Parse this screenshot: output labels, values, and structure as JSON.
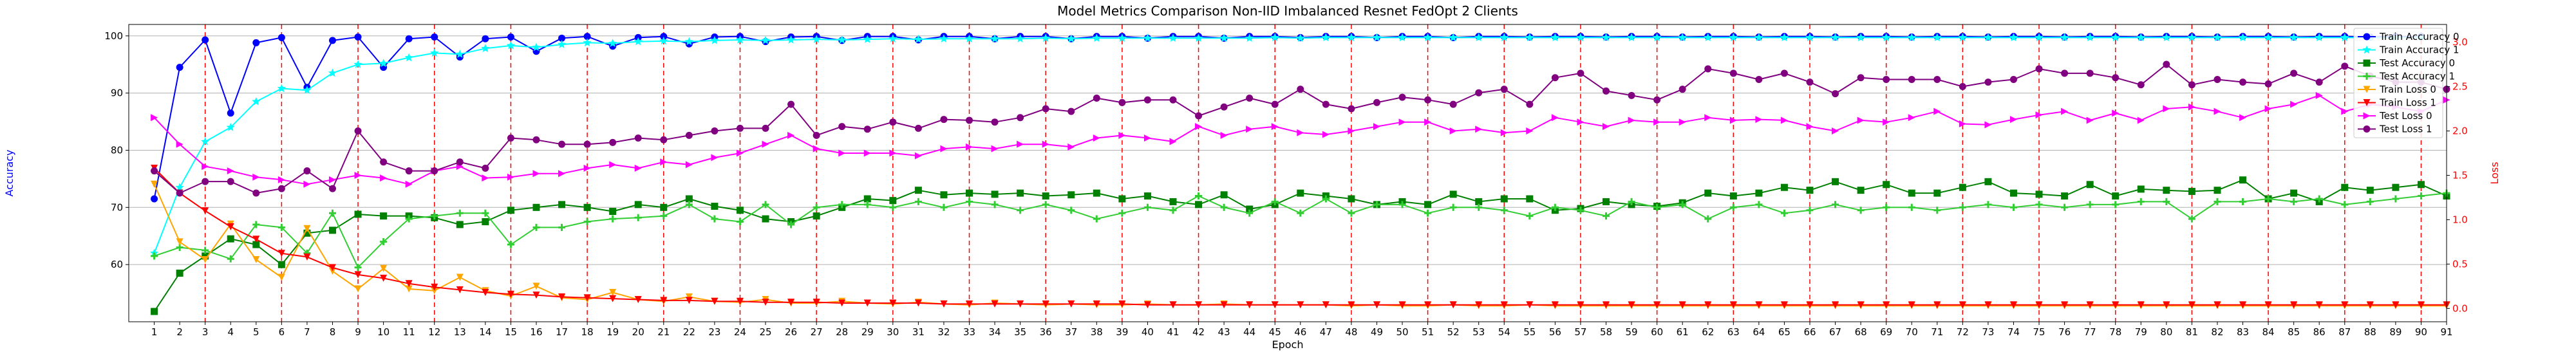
{
  "chart_data": {
    "type": "line",
    "title": "Model Metrics Comparison Non-IID Imbalanced Resnet FedOpt 2 Clients",
    "xlabel": "Epoch",
    "ylabel_left": "Accuracy",
    "ylabel_right": "Loss",
    "xlim": [
      0,
      91
    ],
    "ylim_left": [
      50,
      102
    ],
    "ylim_right": [
      -0.15,
      3.2
    ],
    "x_ticks": [
      1,
      2,
      3,
      4,
      5,
      6,
      7,
      8,
      9,
      10,
      11,
      12,
      13,
      14,
      15,
      16,
      17,
      18,
      19,
      20,
      21,
      22,
      23,
      24,
      25,
      26,
      27,
      28,
      29,
      30,
      31,
      32,
      33,
      34,
      35,
      36,
      37,
      38,
      39,
      40,
      41,
      42,
      43,
      44,
      45,
      46,
      47,
      48,
      49,
      50,
      51,
      52,
      53,
      54,
      55,
      56,
      57,
      58,
      59,
      60,
      61,
      62,
      63,
      64,
      65,
      66,
      67,
      68,
      69,
      70,
      71,
      72,
      73,
      74,
      75,
      76,
      77,
      78,
      79,
      80,
      81,
      82,
      83,
      84,
      85,
      86,
      87,
      88,
      89,
      90,
      91
    ],
    "y_ticks_left": [
      60,
      70,
      80,
      90,
      100
    ],
    "y_ticks_right": [
      "0.0",
      "0.5",
      "1.0",
      "1.5",
      "2.0",
      "2.5",
      "3.0"
    ],
    "y_ticks_right_values": [
      0,
      0.5,
      1,
      1.5,
      2,
      2.5,
      3
    ],
    "vlines": [
      3,
      6,
      9,
      12,
      15,
      18,
      21,
      24,
      27,
      30,
      33,
      36,
      39,
      42,
      45,
      48,
      51,
      54,
      57,
      60,
      63,
      66,
      69,
      72,
      75,
      78,
      81,
      84,
      87,
      90
    ],
    "grid": true,
    "legend_position": "top-right",
    "series": [
      {
        "name": "Train Accuracy 0",
        "axis": "left",
        "color": "#0000ff",
        "marker": "circle",
        "values": [
          71.5,
          94.5,
          99.3,
          86.5,
          98.8,
          99.7,
          91.0,
          99.2,
          99.8,
          94.5,
          99.5,
          99.8,
          96.3,
          99.5,
          99.8,
          97.3,
          99.6,
          99.9,
          98.2,
          99.7,
          99.9,
          98.6,
          99.8,
          99.9,
          99.0,
          99.8,
          99.9,
          99.2,
          99.9,
          99.9,
          99.3,
          99.9,
          99.9,
          99.5,
          99.9,
          99.9,
          99.5,
          99.9,
          99.9,
          99.6,
          99.9,
          99.9,
          99.6,
          99.9,
          99.9,
          99.7,
          99.9,
          99.9,
          99.7,
          99.9,
          99.9,
          99.7,
          99.9,
          99.9,
          99.8,
          99.9,
          99.9,
          99.8,
          99.9,
          99.9,
          99.8,
          99.9,
          99.9,
          99.8,
          99.9,
          99.9,
          99.8,
          99.9,
          99.9,
          99.8,
          99.9,
          99.9,
          99.8,
          99.9,
          99.9,
          99.8,
          99.9,
          99.9,
          99.8,
          99.9,
          99.9,
          99.8,
          99.9,
          99.9,
          99.8,
          99.9,
          99.9,
          99.8,
          99.9,
          99.9
        ]
      },
      {
        "name": "Train Accuracy 1",
        "axis": "left",
        "color": "#00ffff",
        "marker": "star",
        "values": [
          62.0,
          73.5,
          81.5,
          84.0,
          88.5,
          90.8,
          90.5,
          93.5,
          95.0,
          95.2,
          96.2,
          97.0,
          96.8,
          97.8,
          98.3,
          98.0,
          98.5,
          98.8,
          98.7,
          99.0,
          99.1,
          99.0,
          99.2,
          99.3,
          99.2,
          99.3,
          99.4,
          99.3,
          99.4,
          99.5,
          99.4,
          99.5,
          99.5,
          99.5,
          99.5,
          99.6,
          99.5,
          99.6,
          99.6,
          99.6,
          99.6,
          99.6,
          99.6,
          99.6,
          99.7,
          99.6,
          99.7,
          99.7,
          99.7,
          99.7,
          99.7,
          99.7,
          99.7,
          99.7,
          99.7,
          99.7,
          99.7,
          99.7,
          99.7,
          99.7,
          99.7,
          99.7,
          99.7,
          99.7,
          99.7,
          99.7,
          99.7,
          99.7,
          99.7,
          99.7,
          99.7,
          99.7,
          99.7,
          99.7,
          99.7,
          99.7,
          99.7,
          99.7,
          99.7,
          99.7,
          99.7,
          99.7,
          99.7,
          99.7,
          99.7,
          99.7,
          99.7,
          99.7,
          99.7,
          99.7
        ]
      },
      {
        "name": "Test Accuracy 0",
        "axis": "left",
        "color": "#008000",
        "marker": "square",
        "values": [
          51.8,
          58.5,
          61.5,
          64.5,
          63.5,
          60.0,
          65.5,
          66.0,
          68.8,
          68.5,
          68.5,
          68.2,
          67.0,
          67.5,
          69.5,
          70.0,
          70.5,
          70.0,
          69.3,
          70.5,
          70.0,
          71.5,
          70.2,
          69.5,
          68.0,
          67.5,
          68.5,
          70.0,
          71.5,
          71.2,
          73.0,
          72.2,
          72.5,
          72.3,
          72.5,
          72.0,
          72.2,
          72.5,
          71.5,
          72.0,
          71.0,
          70.5,
          72.2,
          69.7,
          70.5,
          72.5,
          72.0,
          71.5,
          70.5,
          71.0,
          70.5,
          72.3,
          71.0,
          71.5,
          71.5,
          69.5,
          69.8,
          71.0,
          70.5,
          70.2,
          70.8,
          72.5,
          72.0,
          72.5,
          73.5,
          73.0,
          74.5,
          73.0,
          74.0,
          72.5,
          72.5,
          73.5,
          74.5,
          72.5,
          72.3,
          72.0,
          74.0,
          72.0,
          73.2,
          73.0,
          72.8,
          73.0,
          74.8,
          71.5,
          72.5,
          71.0,
          73.5,
          73.0,
          73.5,
          74.0,
          72.0
        ]
      },
      {
        "name": "Test Accuracy 1",
        "axis": "left",
        "color": "#32cd32",
        "marker": "plus",
        "values": [
          61.5,
          63.0,
          62.5,
          61.0,
          67.0,
          66.5,
          62.0,
          69.0,
          59.5,
          64.0,
          68.0,
          68.5,
          69.0,
          69.0,
          63.5,
          66.5,
          66.5,
          67.5,
          68.0,
          68.2,
          68.5,
          70.5,
          68.0,
          67.5,
          70.5,
          67.0,
          70.0,
          70.5,
          70.5,
          70.0,
          71.0,
          70.0,
          71.0,
          70.5,
          69.5,
          70.5,
          69.5,
          68.0,
          69.0,
          70.0,
          69.5,
          72.0,
          70.0,
          69.0,
          71.0,
          69.0,
          71.5,
          69.0,
          70.5,
          70.5,
          69.0,
          70.0,
          70.0,
          69.5,
          68.5,
          70.0,
          69.5,
          68.5,
          71.0,
          70.0,
          70.5,
          68.0,
          70.0,
          70.5,
          69.0,
          69.5,
          70.5,
          69.5,
          70.0,
          70.0,
          69.5,
          70.0,
          70.5,
          70.0,
          70.5,
          70.0,
          70.5,
          70.5,
          71.0,
          71.0,
          68.0,
          71.0,
          71.0,
          71.5,
          71.0,
          71.5,
          70.5,
          71.0,
          71.5,
          72.0,
          72.5
        ]
      },
      {
        "name": "Train Loss 0",
        "axis": "right",
        "color": "#ffa500",
        "marker": "triangle-down",
        "values": [
          1.4,
          0.75,
          0.55,
          0.95,
          0.55,
          0.35,
          0.9,
          0.42,
          0.22,
          0.45,
          0.22,
          0.2,
          0.35,
          0.2,
          0.14,
          0.25,
          0.12,
          0.1,
          0.18,
          0.1,
          0.08,
          0.13,
          0.08,
          0.07,
          0.1,
          0.06,
          0.06,
          0.08,
          0.06,
          0.05,
          0.07,
          0.05,
          0.04,
          0.06,
          0.05,
          0.04,
          0.05,
          0.04,
          0.04,
          0.05,
          0.04,
          0.04,
          0.05,
          0.04,
          0.04,
          0.04,
          0.04,
          0.03,
          0.04,
          0.03,
          0.03,
          0.04,
          0.03,
          0.03,
          0.04,
          0.03,
          0.03,
          0.03,
          0.03,
          0.03,
          0.03,
          0.03,
          0.03,
          0.03,
          0.03,
          0.03,
          0.03,
          0.03,
          0.03,
          0.03,
          0.03,
          0.03,
          0.03,
          0.03,
          0.03,
          0.03,
          0.03,
          0.03,
          0.03,
          0.03,
          0.03,
          0.03,
          0.03,
          0.03,
          0.03,
          0.03,
          0.03,
          0.03,
          0.03,
          0.03,
          0.03
        ]
      },
      {
        "name": "Train Loss 1",
        "axis": "right",
        "color": "#ff0000",
        "marker": "triangle-down",
        "values": [
          1.58,
          1.3,
          1.1,
          0.92,
          0.78,
          0.62,
          0.58,
          0.46,
          0.38,
          0.34,
          0.28,
          0.24,
          0.21,
          0.18,
          0.16,
          0.15,
          0.13,
          0.12,
          0.11,
          0.1,
          0.09,
          0.09,
          0.08,
          0.08,
          0.07,
          0.07,
          0.07,
          0.06,
          0.06,
          0.06,
          0.06,
          0.05,
          0.05,
          0.05,
          0.05,
          0.05,
          0.05,
          0.05,
          0.05,
          0.04,
          0.04,
          0.04,
          0.04,
          0.04,
          0.04,
          0.04,
          0.04,
          0.04,
          0.04,
          0.04,
          0.04,
          0.04,
          0.04,
          0.04,
          0.04,
          0.04,
          0.04,
          0.04,
          0.04,
          0.04,
          0.04,
          0.04,
          0.04,
          0.04,
          0.04,
          0.04,
          0.04,
          0.04,
          0.04,
          0.04,
          0.04,
          0.04,
          0.04,
          0.04,
          0.04,
          0.04,
          0.04,
          0.04,
          0.04,
          0.04,
          0.04,
          0.04,
          0.04,
          0.04,
          0.04,
          0.04,
          0.04,
          0.04,
          0.04,
          0.04,
          0.04
        ]
      },
      {
        "name": "Test Loss 0",
        "axis": "right",
        "color": "#ff00ff",
        "marker": "triangle-right",
        "values": [
          2.15,
          1.85,
          1.6,
          1.55,
          1.48,
          1.45,
          1.4,
          1.45,
          1.5,
          1.47,
          1.4,
          1.55,
          1.6,
          1.47,
          1.48,
          1.52,
          1.52,
          1.58,
          1.62,
          1.58,
          1.65,
          1.62,
          1.7,
          1.75,
          1.85,
          1.95,
          1.8,
          1.75,
          1.75,
          1.75,
          1.72,
          1.8,
          1.82,
          1.8,
          1.85,
          1.85,
          1.82,
          1.92,
          1.95,
          1.92,
          1.88,
          2.05,
          1.95,
          2.02,
          2.05,
          1.98,
          1.96,
          2.0,
          2.05,
          2.1,
          2.1,
          2.0,
          2.02,
          1.98,
          2.0,
          2.15,
          2.1,
          2.05,
          2.12,
          2.1,
          2.1,
          2.15,
          2.12,
          2.13,
          2.12,
          2.05,
          2.0,
          2.12,
          2.1,
          2.15,
          2.22,
          2.08,
          2.07,
          2.13,
          2.18,
          2.22,
          2.12,
          2.2,
          2.12,
          2.25,
          2.27,
          2.22,
          2.15,
          2.25,
          2.3,
          2.4,
          2.22,
          2.3,
          2.27,
          2.22,
          2.35
        ]
      },
      {
        "name": "Test Loss 1",
        "axis": "right",
        "color": "#800080",
        "marker": "circle",
        "values": [
          1.55,
          1.3,
          1.43,
          1.43,
          1.3,
          1.35,
          1.55,
          1.35,
          2.0,
          1.65,
          1.55,
          1.55,
          1.65,
          1.58,
          1.92,
          1.9,
          1.85,
          1.85,
          1.87,
          1.92,
          1.9,
          1.95,
          2.0,
          2.03,
          2.03,
          2.3,
          1.95,
          2.05,
          2.02,
          2.1,
          2.03,
          2.13,
          2.12,
          2.1,
          2.15,
          2.25,
          2.22,
          2.37,
          2.32,
          2.35,
          2.35,
          2.17,
          2.27,
          2.37,
          2.3,
          2.47,
          2.3,
          2.25,
          2.32,
          2.38,
          2.35,
          2.3,
          2.43,
          2.47,
          2.3,
          2.6,
          2.65,
          2.45,
          2.4,
          2.35,
          2.47,
          2.7,
          2.65,
          2.58,
          2.65,
          2.55,
          2.42,
          2.6,
          2.58,
          2.58,
          2.58,
          2.5,
          2.55,
          2.58,
          2.7,
          2.65,
          2.65,
          2.6,
          2.52,
          2.75,
          2.52,
          2.58,
          2.55,
          2.53,
          2.65,
          2.55,
          2.73,
          2.62,
          2.55,
          2.55,
          2.47
        ]
      }
    ]
  }
}
